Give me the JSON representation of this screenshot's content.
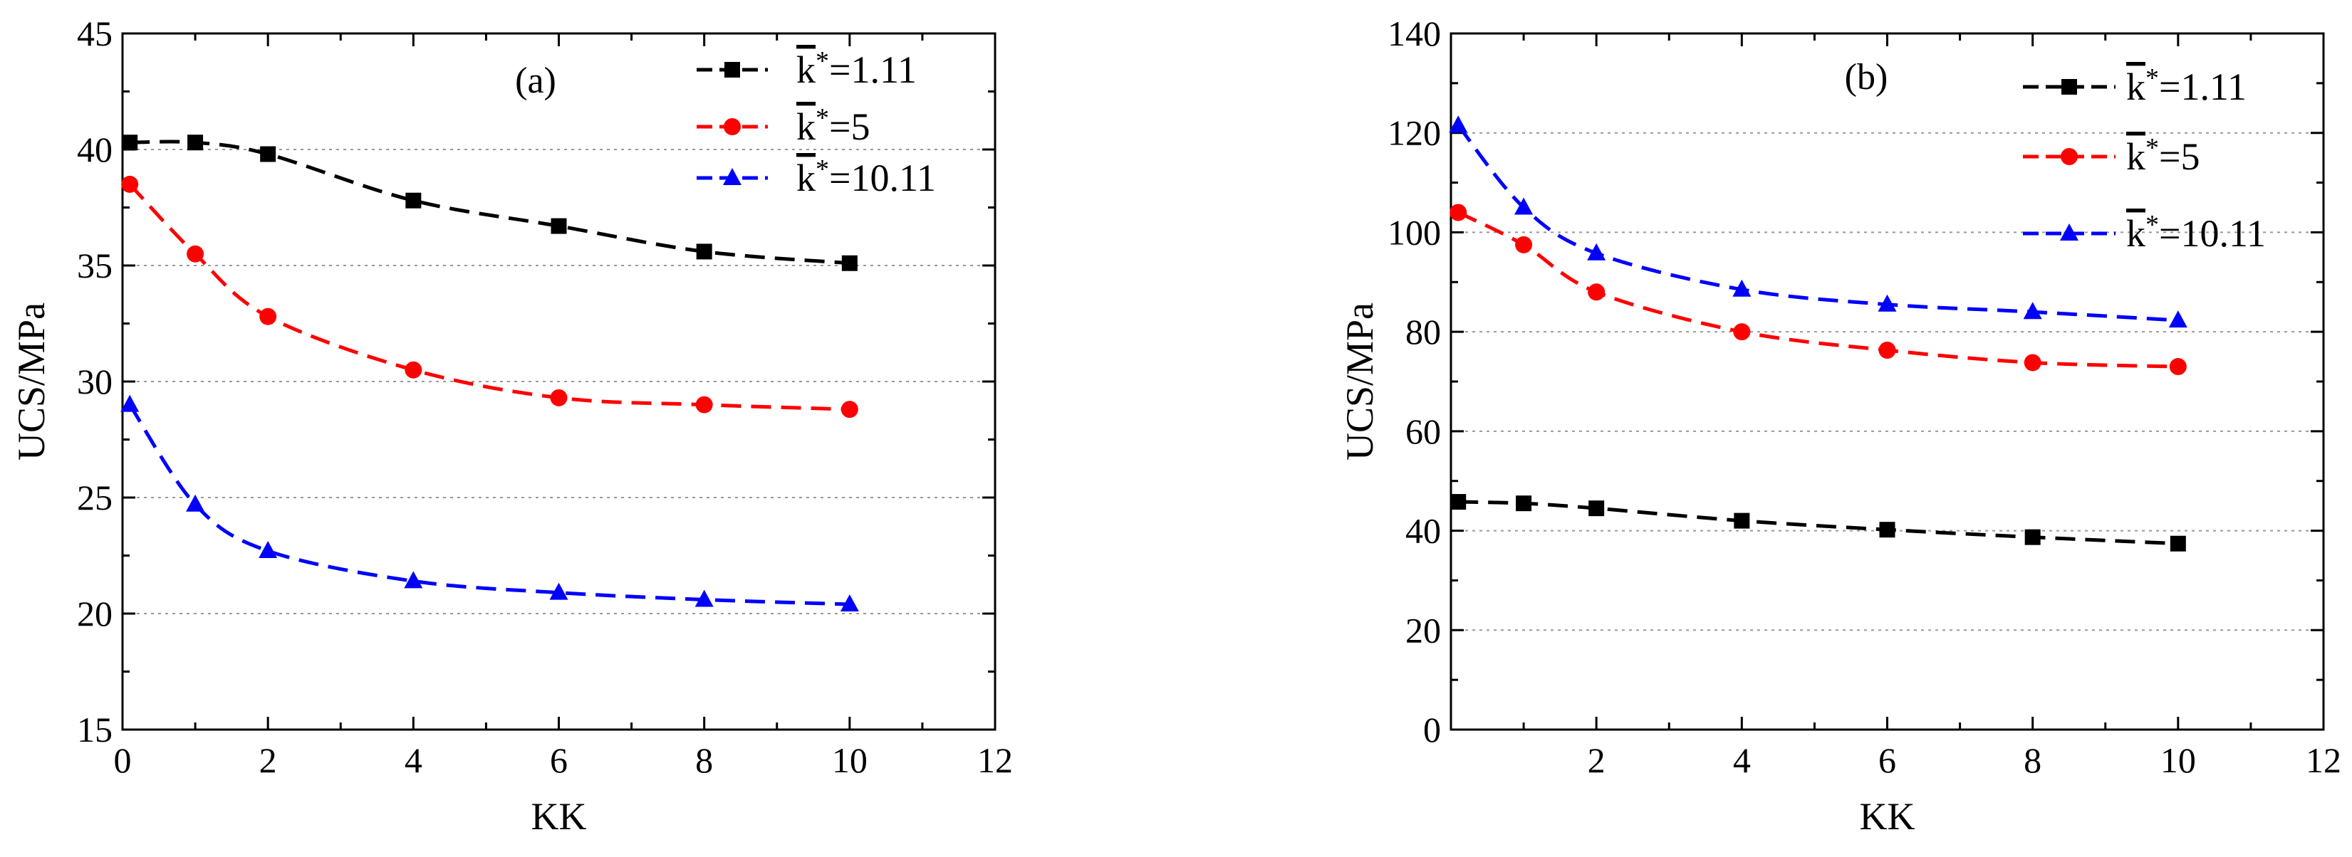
{
  "chart_data": [
    {
      "type": "line",
      "panel_label": "(a)",
      "xlabel": "KK",
      "ylabel": "UCS/MPa",
      "xlim": [
        0,
        12
      ],
      "ylim": [
        15,
        45
      ],
      "xticks": [
        0,
        2,
        4,
        6,
        8,
        10,
        12
      ],
      "yticks": [
        15,
        20,
        25,
        30,
        35,
        40,
        45
      ],
      "grid": "horizontal dotted",
      "legend_position": "top-right",
      "series": [
        {
          "name": "k̅*=1.11",
          "legend_base": "k",
          "legend_sup": "*",
          "legend_value": "=1.11",
          "color": "#000000",
          "marker": "square",
          "x": [
            0.1,
            1,
            2,
            4,
            6,
            8,
            10
          ],
          "y": [
            40.3,
            40.3,
            39.8,
            37.8,
            36.7,
            35.6,
            35.1
          ]
        },
        {
          "name": "k̅*=5",
          "legend_base": "k",
          "legend_sup": "*",
          "legend_value": "=5",
          "color": "#ff0000",
          "marker": "circle",
          "x": [
            0.1,
            1,
            2,
            4,
            6,
            8,
            10
          ],
          "y": [
            38.5,
            35.5,
            32.8,
            30.5,
            29.3,
            29.0,
            28.8
          ]
        },
        {
          "name": "k̅*=10.11",
          "legend_base": "k",
          "legend_sup": "*",
          "legend_value": "=10.11",
          "color": "#0000ff",
          "marker": "triangle",
          "x": [
            0.1,
            1,
            2,
            4,
            6,
            8,
            10
          ],
          "y": [
            29.0,
            24.7,
            22.7,
            21.4,
            20.9,
            20.6,
            20.4
          ]
        }
      ]
    },
    {
      "type": "line",
      "panel_label": "(b)",
      "xlabel": "KK",
      "ylabel": "UCS/MPa",
      "xlim": [
        0,
        12
      ],
      "ylim": [
        0,
        140
      ],
      "xticks": [
        2,
        4,
        6,
        8,
        10,
        12
      ],
      "yticks": [
        0,
        20,
        40,
        60,
        80,
        100,
        120,
        140
      ],
      "grid": "horizontal dotted",
      "legend_position": "top-right",
      "series": [
        {
          "name": "k̅*=1.11",
          "legend_base": "k",
          "legend_sup": "*",
          "legend_value": "=1.11",
          "color": "#000000",
          "marker": "square",
          "x": [
            0.1,
            1,
            2,
            4,
            6,
            8,
            10
          ],
          "y": [
            45.8,
            45.5,
            44.5,
            42.0,
            40.2,
            38.7,
            37.4
          ]
        },
        {
          "name": "k̅*=5",
          "legend_base": "k",
          "legend_sup": "*",
          "legend_value": "=5",
          "color": "#ff0000",
          "marker": "circle",
          "x": [
            0.1,
            1,
            2,
            4,
            6,
            8,
            10
          ],
          "y": [
            104.0,
            97.5,
            88.0,
            80.0,
            76.3,
            73.8,
            73.0
          ]
        },
        {
          "name": "k̅*=10.11",
          "legend_base": "k",
          "legend_sup": "*",
          "legend_value": "=10.11",
          "color": "#0000ff",
          "marker": "triangle",
          "x": [
            0.1,
            1,
            2,
            4,
            6,
            8,
            10
          ],
          "y": [
            121.5,
            105.0,
            95.8,
            88.5,
            85.5,
            84.0,
            82.3
          ]
        }
      ]
    }
  ]
}
